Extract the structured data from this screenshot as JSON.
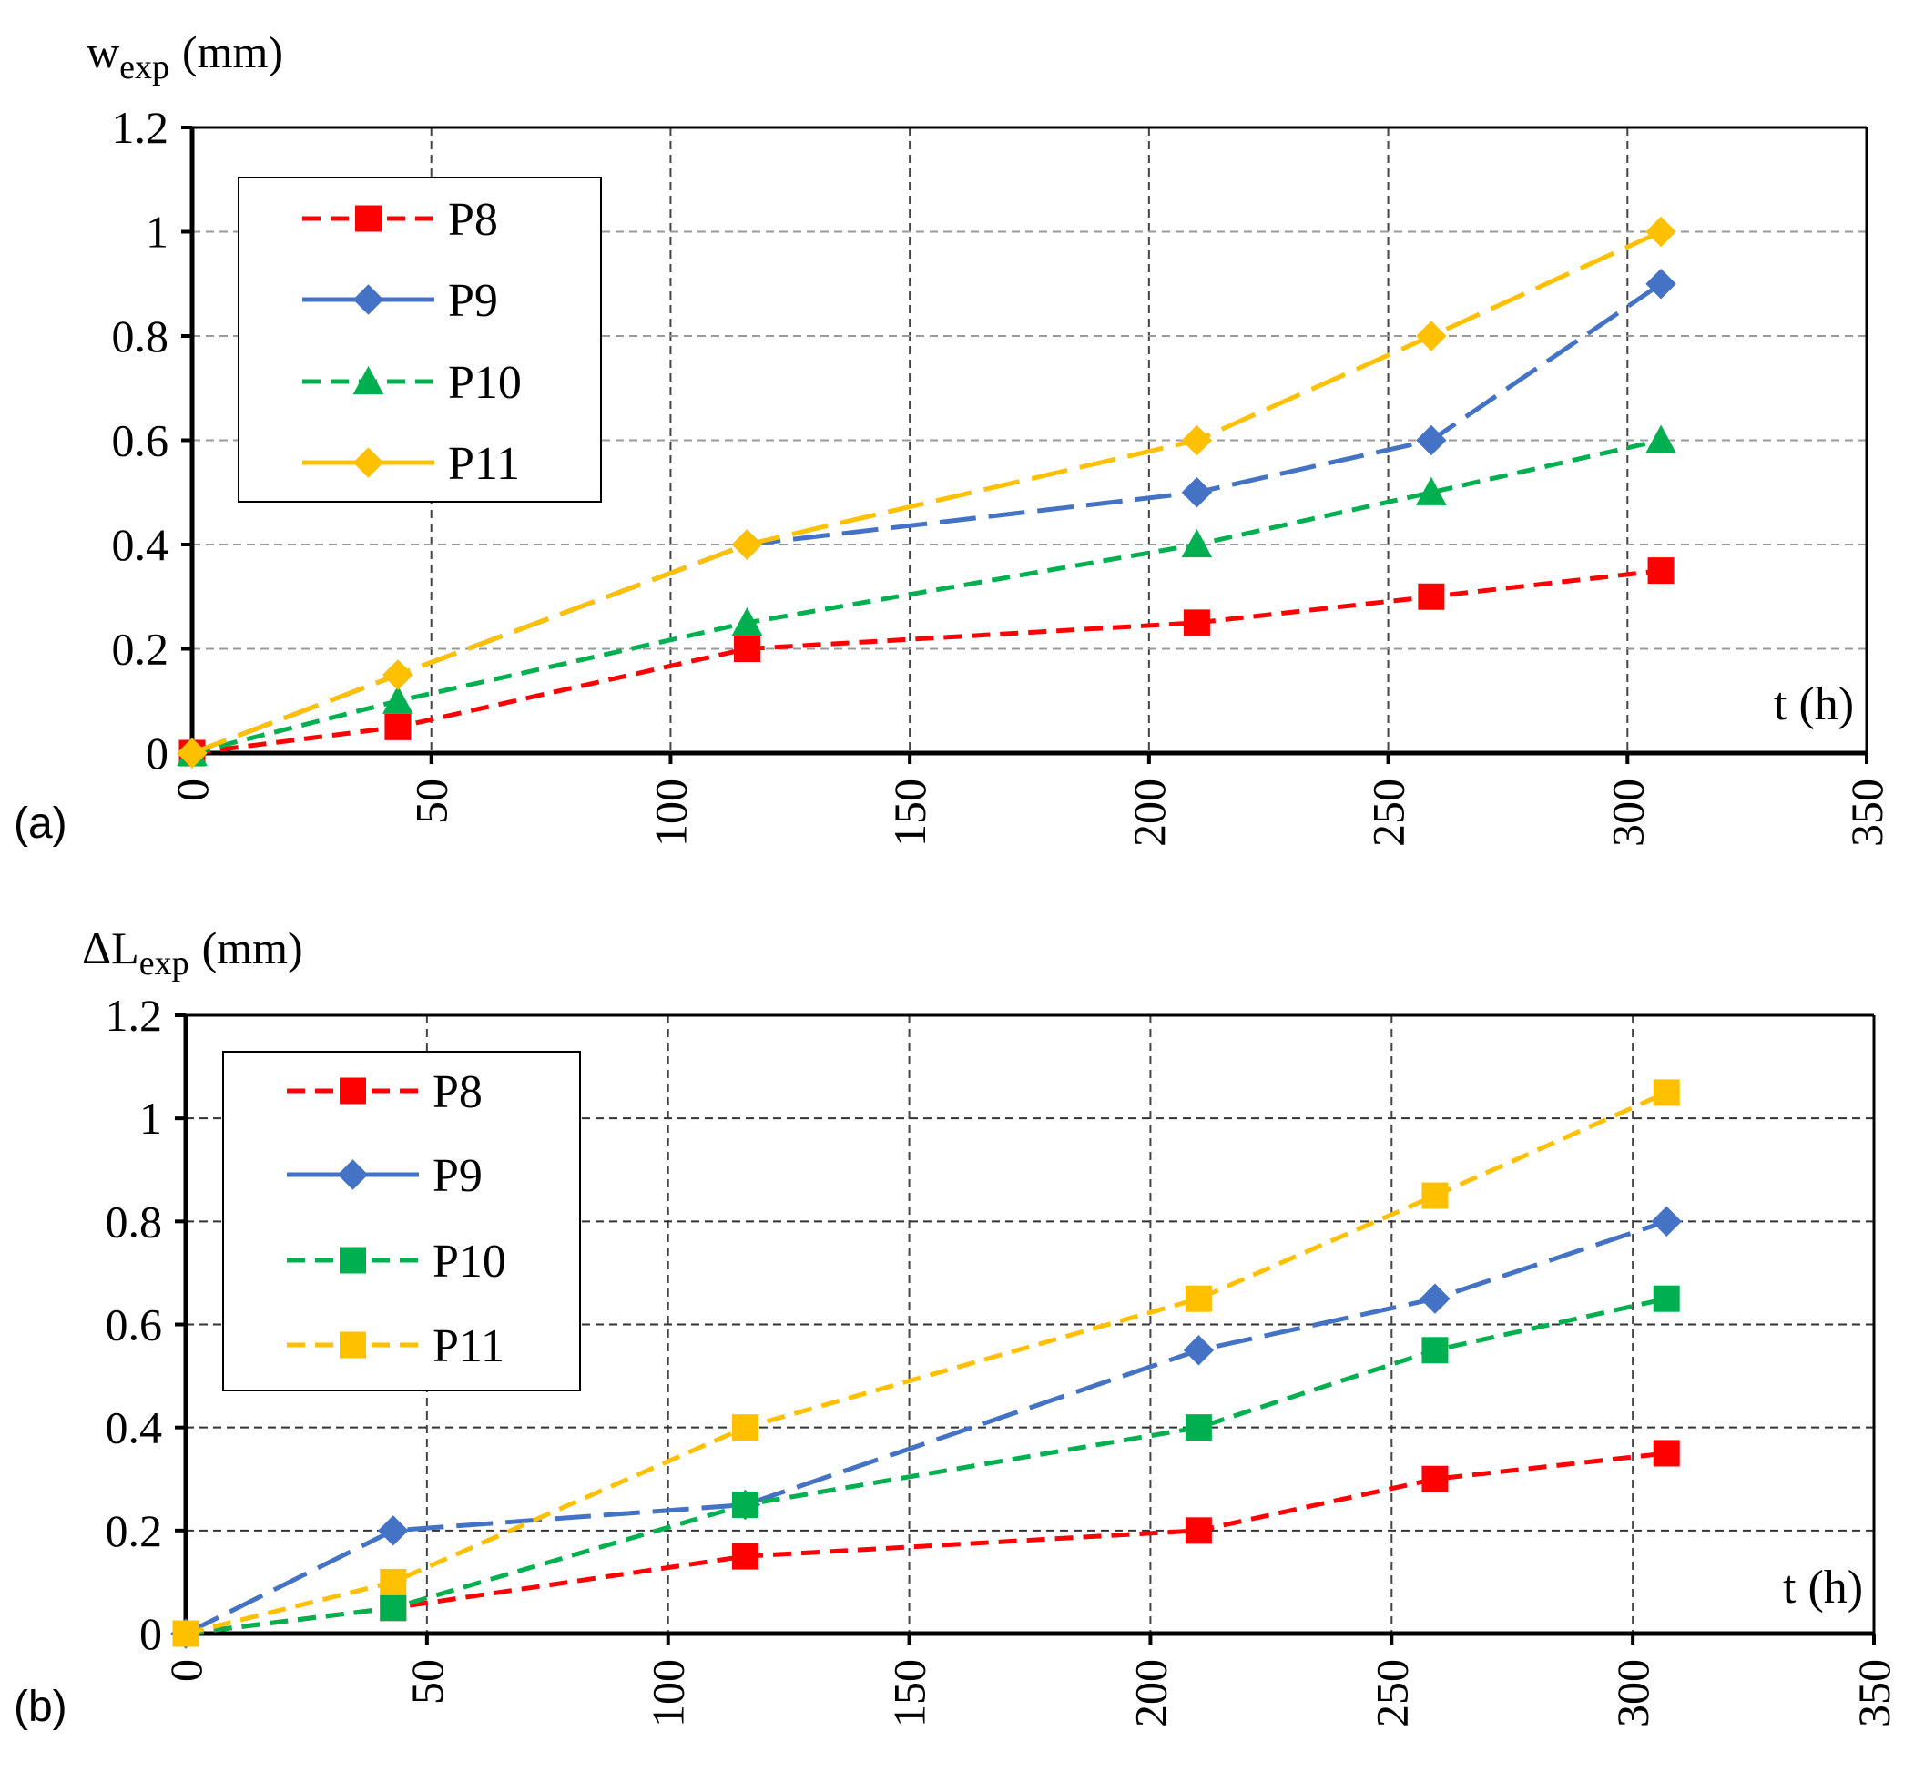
{
  "chart_data": [
    {
      "type": "line",
      "panel_label": "(a)",
      "ylabel_main": "w",
      "ylabel_sub": "exp",
      "ylabel_unit": "(mm)",
      "xlabel": "t (h)",
      "xlim": [
        0,
        350
      ],
      "ylim": [
        0,
        1.2
      ],
      "xticks": [
        "0",
        "50",
        "100",
        "150",
        "200",
        "250",
        "300",
        "350"
      ],
      "yticks": [
        "0",
        "0.2",
        "0.4",
        "0.6",
        "0.8",
        "1",
        "1.2"
      ],
      "grid": true,
      "legend": "top-left",
      "series": [
        {
          "name": "P8",
          "color": "#ff0000",
          "marker": "square",
          "dash": "dashed",
          "x": [
            0,
            43,
            116,
            210,
            259,
            307
          ],
          "values": [
            0,
            0.05,
            0.2,
            0.25,
            0.3,
            0.35
          ]
        },
        {
          "name": "P9",
          "color": "#4472c4",
          "marker": "diamond",
          "dash": "long-dash",
          "x": [
            0,
            43,
            116,
            210,
            259,
            307
          ],
          "values": [
            0,
            0.15,
            0.4,
            0.5,
            0.6,
            0.9
          ]
        },
        {
          "name": "P10",
          "color": "#00b050",
          "marker": "triangle",
          "dash": "dashed",
          "x": [
            0,
            43,
            116,
            210,
            259,
            307
          ],
          "values": [
            0,
            0.1,
            0.25,
            0.4,
            0.5,
            0.6
          ]
        },
        {
          "name": "P11",
          "color": "#ffc000",
          "marker": "diamond",
          "dash": "long-dash",
          "x": [
            0,
            43,
            116,
            210,
            259,
            307
          ],
          "values": [
            0,
            0.15,
            0.4,
            0.6,
            0.8,
            1.0
          ]
        }
      ]
    },
    {
      "type": "line",
      "panel_label": "(b)",
      "ylabel_main": "ΔL",
      "ylabel_sub": "exp",
      "ylabel_unit": "(mm)",
      "xlabel": "t (h)",
      "xlim": [
        0,
        350
      ],
      "ylim": [
        0,
        1.2
      ],
      "xticks": [
        "0",
        "50",
        "100",
        "150",
        "200",
        "250",
        "300",
        "350"
      ],
      "yticks": [
        "0",
        "0.2",
        "0.4",
        "0.6",
        "0.8",
        "1",
        "1.2"
      ],
      "grid": true,
      "legend": "top-left",
      "series": [
        {
          "name": "P8",
          "color": "#ff0000",
          "marker": "square",
          "dash": "dashed",
          "x": [
            0,
            43,
            116,
            210,
            259,
            307
          ],
          "values": [
            0,
            0.05,
            0.15,
            0.2,
            0.3,
            0.35
          ]
        },
        {
          "name": "P9",
          "color": "#4472c4",
          "marker": "diamond",
          "dash": "long-dash",
          "x": [
            0,
            43,
            116,
            210,
            259,
            307
          ],
          "values": [
            0,
            0.2,
            0.25,
            0.55,
            0.65,
            0.8
          ]
        },
        {
          "name": "P10",
          "color": "#00b050",
          "marker": "square",
          "dash": "dashed",
          "x": [
            0,
            43,
            116,
            210,
            259,
            307
          ],
          "values": [
            0,
            0.05,
            0.25,
            0.4,
            0.55,
            0.65
          ]
        },
        {
          "name": "P11",
          "color": "#ffc000",
          "marker": "square",
          "dash": "dashed",
          "x": [
            0,
            43,
            116,
            210,
            259,
            307
          ],
          "values": [
            0,
            0.1,
            0.4,
            0.65,
            0.85,
            1.05
          ]
        }
      ]
    }
  ]
}
